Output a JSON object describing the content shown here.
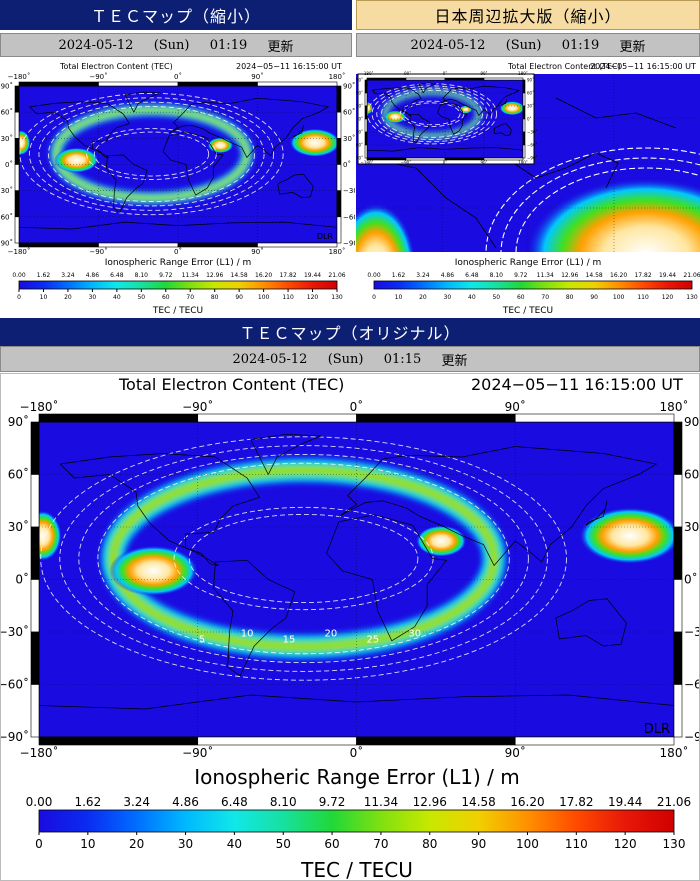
{
  "left_panel": {
    "header": "ＴＥＣマップ（縮小）",
    "date": "2024-05-12",
    "weekday": "(Sun)",
    "time": "01:19",
    "update_label": "更新",
    "chart_title": "Total Electron Content (TEC)",
    "chart_timestamp": "2024−05−11  16:15:00 UT",
    "xlabel": "Ionospheric Range Error (L1) / m",
    "clabel": "TEC / TECU",
    "watermark": "DLR"
  },
  "right_panel": {
    "header": "日本周辺拡大版（縮小）",
    "date": "2024-05-12",
    "weekday": "(Sun)",
    "time": "01:19",
    "update_label": "更新",
    "chart_title": "Total Electron Content (TEC)",
    "chart_timestamp": "2024−05−11  16:15:00 UT",
    "xlabel": "Ionospheric Range Error (L1) / m",
    "clabel": "TEC / TECU"
  },
  "main_panel": {
    "header": "ＴＥＣマップ（オリジナル）",
    "date": "2024-05-12",
    "weekday": "(Sun)",
    "time": "01:15",
    "update_label": "更新",
    "chart_title": "Total Electron Content (TEC)",
    "chart_timestamp": "2024−05−11  16:15:00 UT",
    "xlabel": "Ionospheric Range Error (L1) / m",
    "clabel": "TEC / TECU",
    "watermark": "DLR"
  },
  "chart_data": {
    "type": "heatmap",
    "title": "Total Electron Content (TEC)",
    "timestamp": "2024−05−11  16:15:00 UT",
    "xlim": [
      -180,
      180
    ],
    "ylim": [
      -90,
      90
    ],
    "lon_ticks": [
      "−180˚",
      "−90˚",
      "0˚",
      "90˚",
      "180˚"
    ],
    "lat_ticks": [
      "90˚",
      "60˚",
      "30˚",
      "0˚",
      "−30˚",
      "−60˚",
      "−90˚"
    ],
    "lon_values": [
      -180,
      -90,
      0,
      90,
      180
    ],
    "lat_values": [
      90,
      60,
      30,
      0,
      -30,
      -60,
      -90
    ],
    "colorbar": {
      "tecu_ticks": [
        "0",
        "10",
        "20",
        "30",
        "40",
        "50",
        "60",
        "70",
        "80",
        "90",
        "100",
        "110",
        "120",
        "130"
      ],
      "range_error_ticks": [
        "0.00",
        "1.62",
        "3.24",
        "4.86",
        "6.48",
        "8.10",
        "9.72",
        "11.34",
        "12.96",
        "14.58",
        "16.20",
        "17.82",
        "19.44",
        "21.06"
      ],
      "stops": [
        "#1a0be0",
        "#0a2cf2",
        "#006eff",
        "#00b8ff",
        "#10e8e8",
        "#18e0a0",
        "#20d838",
        "#80e010",
        "#c8e800",
        "#f0d000",
        "#ff9000",
        "#ff4a00",
        "#e81808",
        "#d00000"
      ]
    },
    "contour_labels": [
      "5",
      "10",
      "15",
      "20",
      "25",
      "30"
    ]
  }
}
